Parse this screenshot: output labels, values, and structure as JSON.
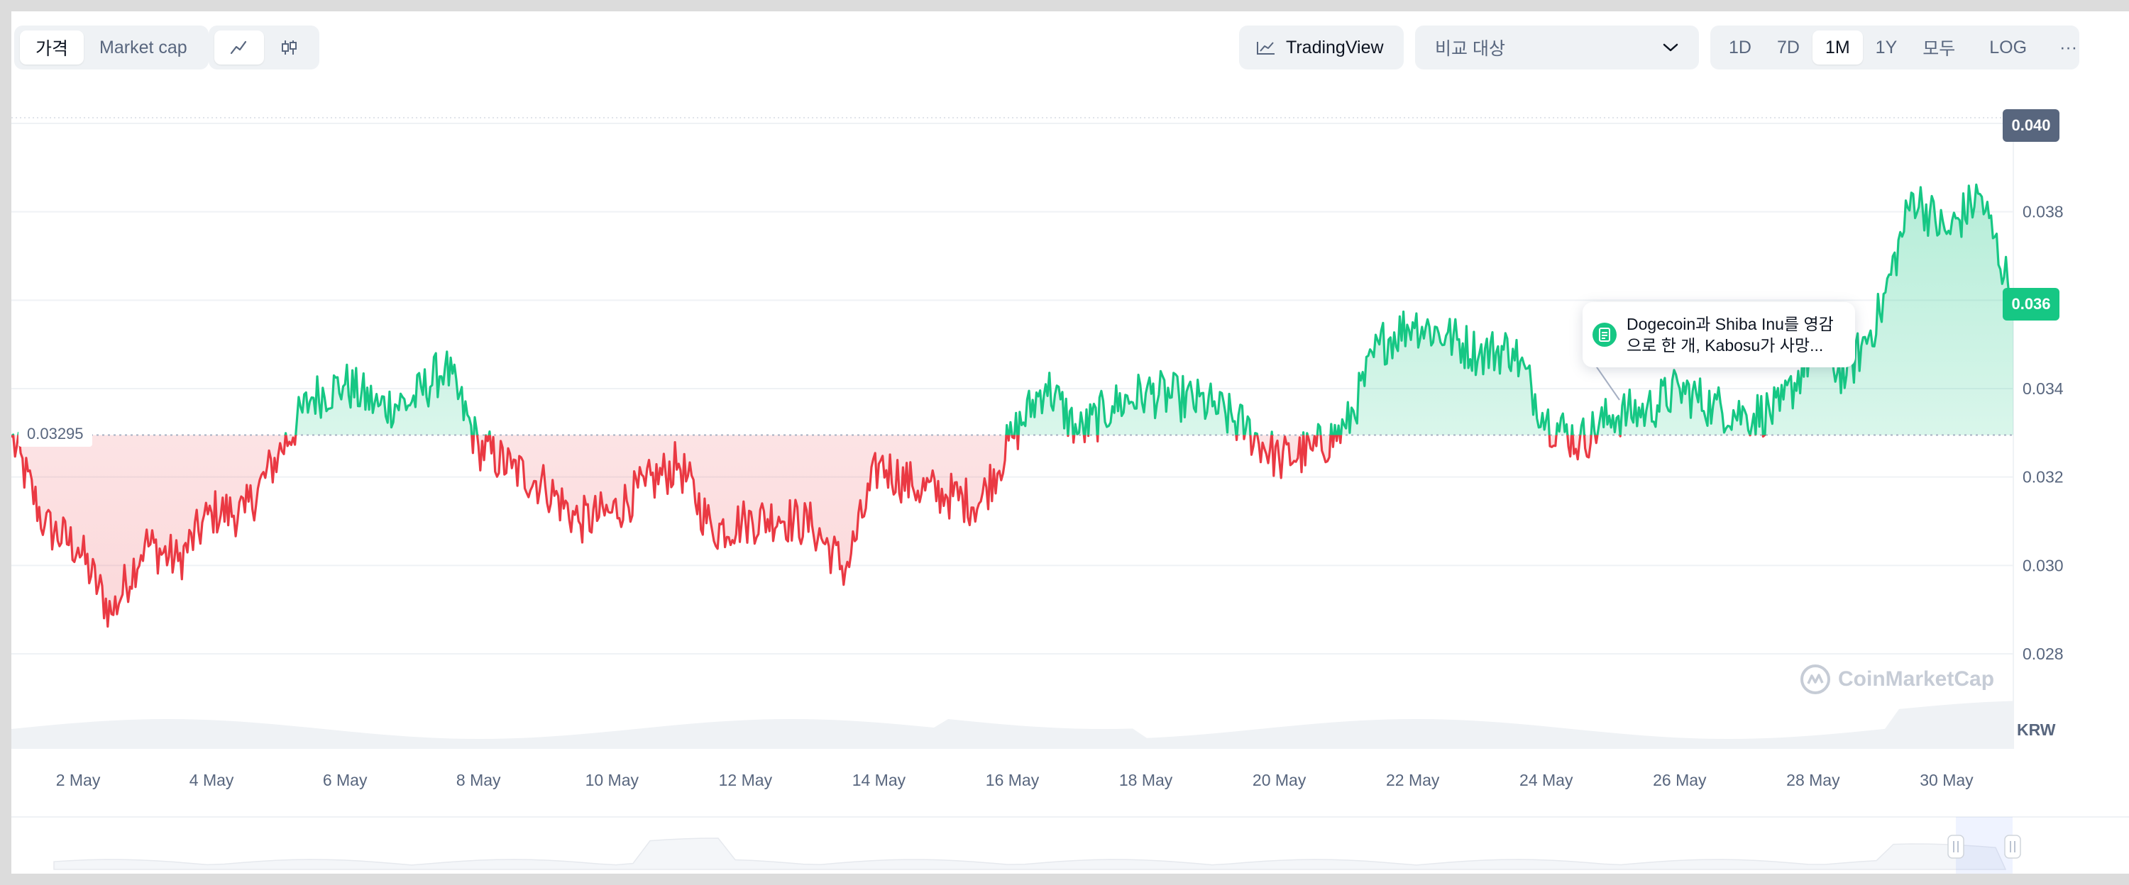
{
  "toolbar": {
    "view_tabs": [
      {
        "label": "가격",
        "active": true
      },
      {
        "label": "Market cap",
        "active": false
      }
    ],
    "chart_type_icons": [
      {
        "icon": "line-chart-icon",
        "active": true
      },
      {
        "icon": "candlestick-icon",
        "active": false
      }
    ],
    "tradingview_label": "TradingView",
    "compare_placeholder": "비교 대상",
    "ranges": [
      {
        "label": "1D",
        "active": false
      },
      {
        "label": "7D",
        "active": false
      },
      {
        "label": "1M",
        "active": true
      },
      {
        "label": "1Y",
        "active": false
      },
      {
        "label": "모두",
        "active": false
      }
    ],
    "log_label": "LOG",
    "more_label": "···"
  },
  "price_tags": {
    "top": "0.040",
    "current": "0.036",
    "reference": "0.03295"
  },
  "news": {
    "line1": "Dogecoin과 Shiba Inu를 영감",
    "line2": "으로 한 개, Kabosu가 사망..."
  },
  "watermark": "CoinMarketCap",
  "currency": "KRW",
  "colors": {
    "up": "#16c784",
    "down": "#ea3943",
    "grid": "#eff2f5",
    "text": "#58667e",
    "top_tag": "#58667e"
  },
  "chart_data": {
    "type": "line",
    "title": "",
    "xlabel": "",
    "ylabel": "",
    "x_ticks": [
      "2 May",
      "4 May",
      "6 May",
      "8 May",
      "10 May",
      "12 May",
      "14 May",
      "16 May",
      "18 May",
      "20 May",
      "22 May",
      "24 May",
      "26 May",
      "28 May",
      "30 May"
    ],
    "y_ticks": [
      0.028,
      0.03,
      0.032,
      0.034,
      0.036,
      0.038,
      0.04
    ],
    "ylim": [
      0.027,
      0.04
    ],
    "reference_price": 0.03295,
    "grid": true,
    "series": [
      {
        "x": [
          "1 May",
          "1.5 May",
          "2 May",
          "2.5 May",
          "3 May",
          "3.5 May",
          "4 May",
          "4.5 May",
          "5 May",
          "5.5 May",
          "6 May",
          "6.5 May",
          "7 May",
          "7.5 May",
          "8 May",
          "8.5 May",
          "9 May",
          "9.5 May",
          "10 May",
          "10.5 May",
          "11 May",
          "11.5 May",
          "12 May",
          "12.5 May",
          "13 May",
          "13.5 May",
          "14 May",
          "14.5 May",
          "15 May",
          "15.5 May",
          "16 May",
          "16.5 May",
          "17 May",
          "17.5 May",
          "18 May",
          "18.5 May",
          "19 May",
          "19.5 May",
          "20 May",
          "20.5 May",
          "21 May",
          "21.5 May",
          "22 May",
          "22.5 May",
          "23 May",
          "23.5 May",
          "24 May",
          "24.5 May",
          "25 May",
          "25.5 May",
          "26 May",
          "26.5 May",
          "27 May",
          "27.5 May",
          "28 May",
          "28.5 May",
          "29 May",
          "29.5 May",
          "30 May",
          "30.5 May",
          "31 May"
        ],
        "values": [
          0.0329,
          0.0309,
          0.0304,
          0.0289,
          0.0305,
          0.0301,
          0.0312,
          0.0312,
          0.0325,
          0.0338,
          0.0341,
          0.0336,
          0.0337,
          0.0345,
          0.0327,
          0.0322,
          0.0318,
          0.031,
          0.0312,
          0.0318,
          0.0323,
          0.0308,
          0.031,
          0.0311,
          0.0309,
          0.0299,
          0.0323,
          0.0318,
          0.0316,
          0.0314,
          0.0329,
          0.0341,
          0.033,
          0.0336,
          0.0339,
          0.0338,
          0.0336,
          0.0331,
          0.0324,
          0.0326,
          0.0331,
          0.035,
          0.0355,
          0.0352,
          0.0348,
          0.0349,
          0.0333,
          0.0328,
          0.0334,
          0.0335,
          0.034,
          0.0336,
          0.0334,
          0.0335,
          0.0349,
          0.0343,
          0.0357,
          0.0384,
          0.0375,
          0.0384,
          0.036
        ]
      }
    ]
  }
}
